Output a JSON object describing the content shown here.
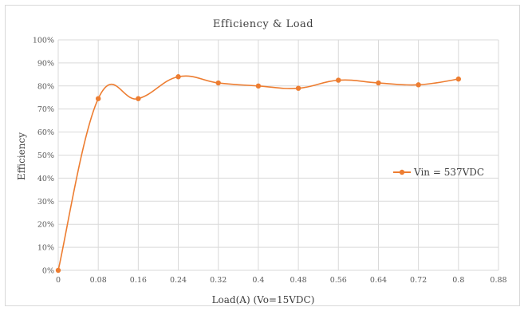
{
  "chart_data": {
    "type": "line",
    "title": "Efficiency & Load",
    "xlabel": "Load(A) (Vo=15VDC)",
    "ylabel": "Efficiency",
    "x_ticks": [
      "0",
      "0.08",
      "0.16",
      "0.24",
      "0.32",
      "0.4",
      "0.48",
      "0.56",
      "0.64",
      "0.72",
      "0.8",
      "0.88"
    ],
    "y_ticks": [
      "0%",
      "10%",
      "20%",
      "30%",
      "40%",
      "50%",
      "60%",
      "70%",
      "80%",
      "90%",
      "100%"
    ],
    "xlim": [
      0,
      0.88
    ],
    "ylim": [
      0,
      1.0
    ],
    "grid": true,
    "smooth": true,
    "legend_position": "right",
    "series": [
      {
        "name": "Vin = 537VDC",
        "color": "#ed7d31",
        "x": [
          0,
          0.08,
          0.16,
          0.24,
          0.32,
          0.4,
          0.48,
          0.56,
          0.64,
          0.72,
          0.8
        ],
        "y": [
          0.0,
          0.745,
          0.745,
          0.84,
          0.813,
          0.8,
          0.79,
          0.825,
          0.813,
          0.805,
          0.83
        ]
      }
    ]
  }
}
